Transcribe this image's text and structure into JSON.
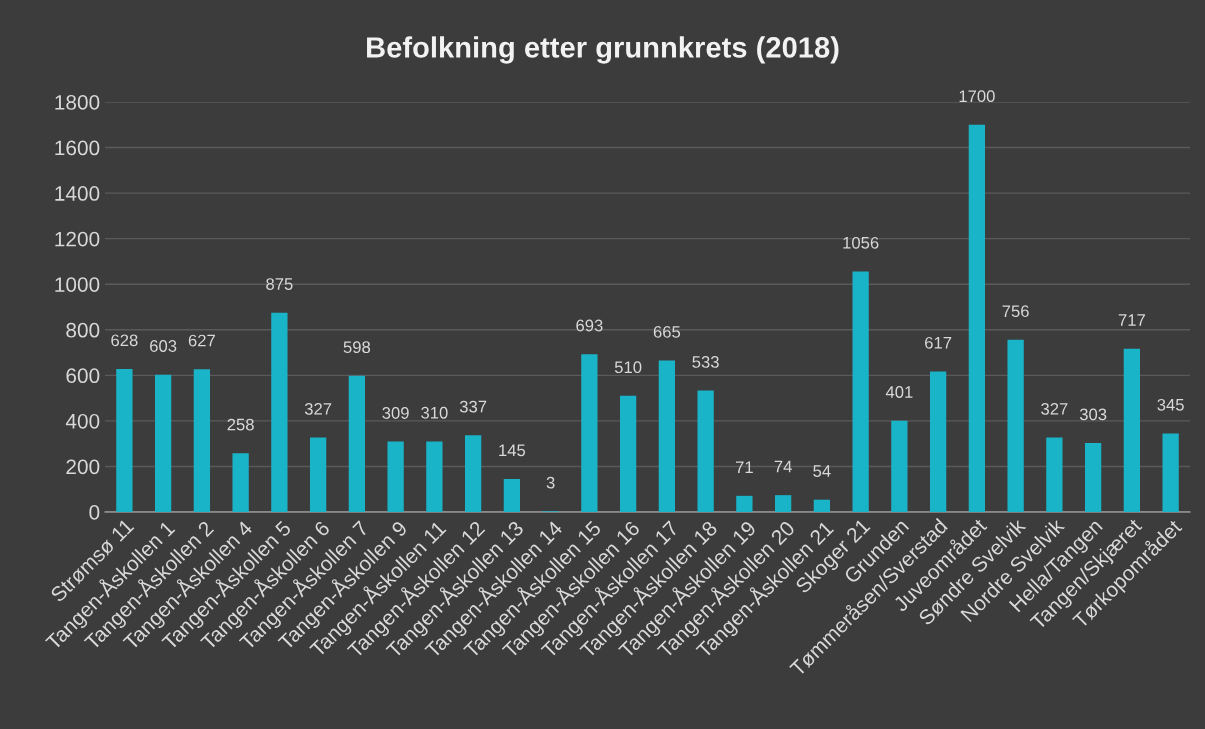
{
  "chart_data": {
    "type": "bar",
    "title": "Befolkning etter grunnkrets (2018)",
    "categories": [
      "Strømsø 11",
      "Tangen-Åskollen 1",
      "Tangen-Åskollen 2",
      "Tangen-Åskollen 4",
      "Tangen-Åskollen 5",
      "Tangen-Åskollen 6",
      "Tangen-Åskollen 7",
      "Tangen-Åskollen 9",
      "Tangen-Åskollen 11",
      "Tangen-Åskollen 12",
      "Tangen-Åskollen 13",
      "Tangen-Åskollen 14",
      "Tangen-Åskollen 15",
      "Tangen-Åskollen 16",
      "Tangen-Åskollen 17",
      "Tangen-Åskollen 18",
      "Tangen-Åskollen 19",
      "Tangen-Åskollen 20",
      "Tangen-Åskollen 21",
      "Skoger 21",
      "Grunden",
      "Tømmeråsen/Sverstad",
      "Juveområdet",
      "Søndre Svelvik",
      "Nordre Svelvik",
      "Hella/Tangen",
      "Tangen/Skjæret",
      "Tørkopområdet"
    ],
    "values": [
      628,
      603,
      627,
      258,
      875,
      327,
      598,
      309,
      310,
      337,
      145,
      3,
      693,
      510,
      665,
      533,
      71,
      74,
      54,
      1056,
      401,
      617,
      1700,
      756,
      327,
      303,
      717,
      345
    ],
    "color": "#1ab4c9",
    "ylim": [
      0,
      1800
    ],
    "yticks": [
      0,
      200,
      400,
      600,
      800,
      1000,
      1200,
      1400,
      1600,
      1800
    ],
    "grid": "y",
    "data_labels": true
  }
}
